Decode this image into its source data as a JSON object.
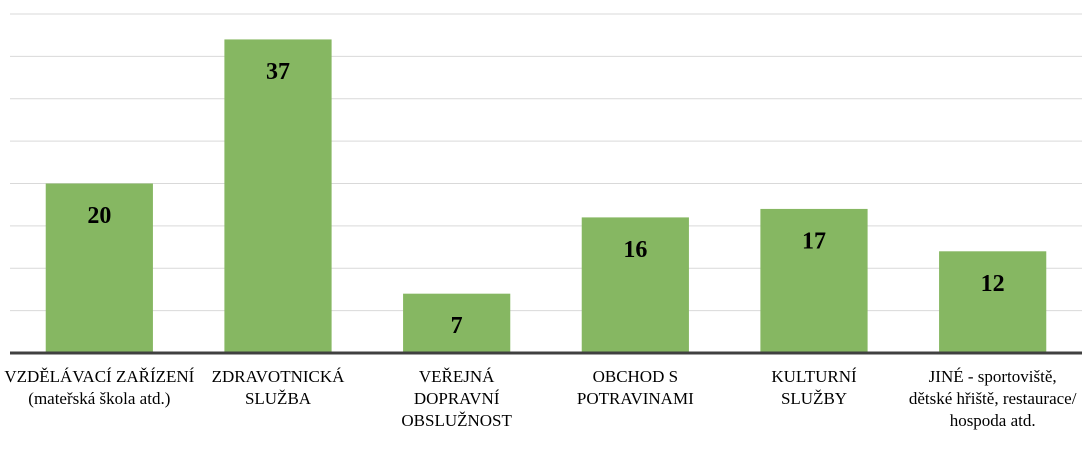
{
  "chart_data": {
    "type": "bar",
    "categories": [
      "VZDĚLÁVACÍ ZAŘÍZENÍ (mateřská škola atd.)",
      "ZDRAVOTNICKÁ SLUŽBA",
      "VEŘEJNÁ DOPRAVNÍ OBSLUŽNOST",
      "OBCHOD S POTRAVINAMI",
      "KULTURNÍ SLUŽBY",
      "JINÉ - sportoviště, dětské hřiště, restaurace/ hospoda atd."
    ],
    "values": [
      20,
      37,
      7,
      16,
      17,
      12
    ],
    "color": "#86b762",
    "ylim": [
      0,
      40
    ],
    "yticks": [
      0,
      5,
      10,
      15,
      20,
      25,
      30,
      35,
      40
    ],
    "grid": true
  }
}
